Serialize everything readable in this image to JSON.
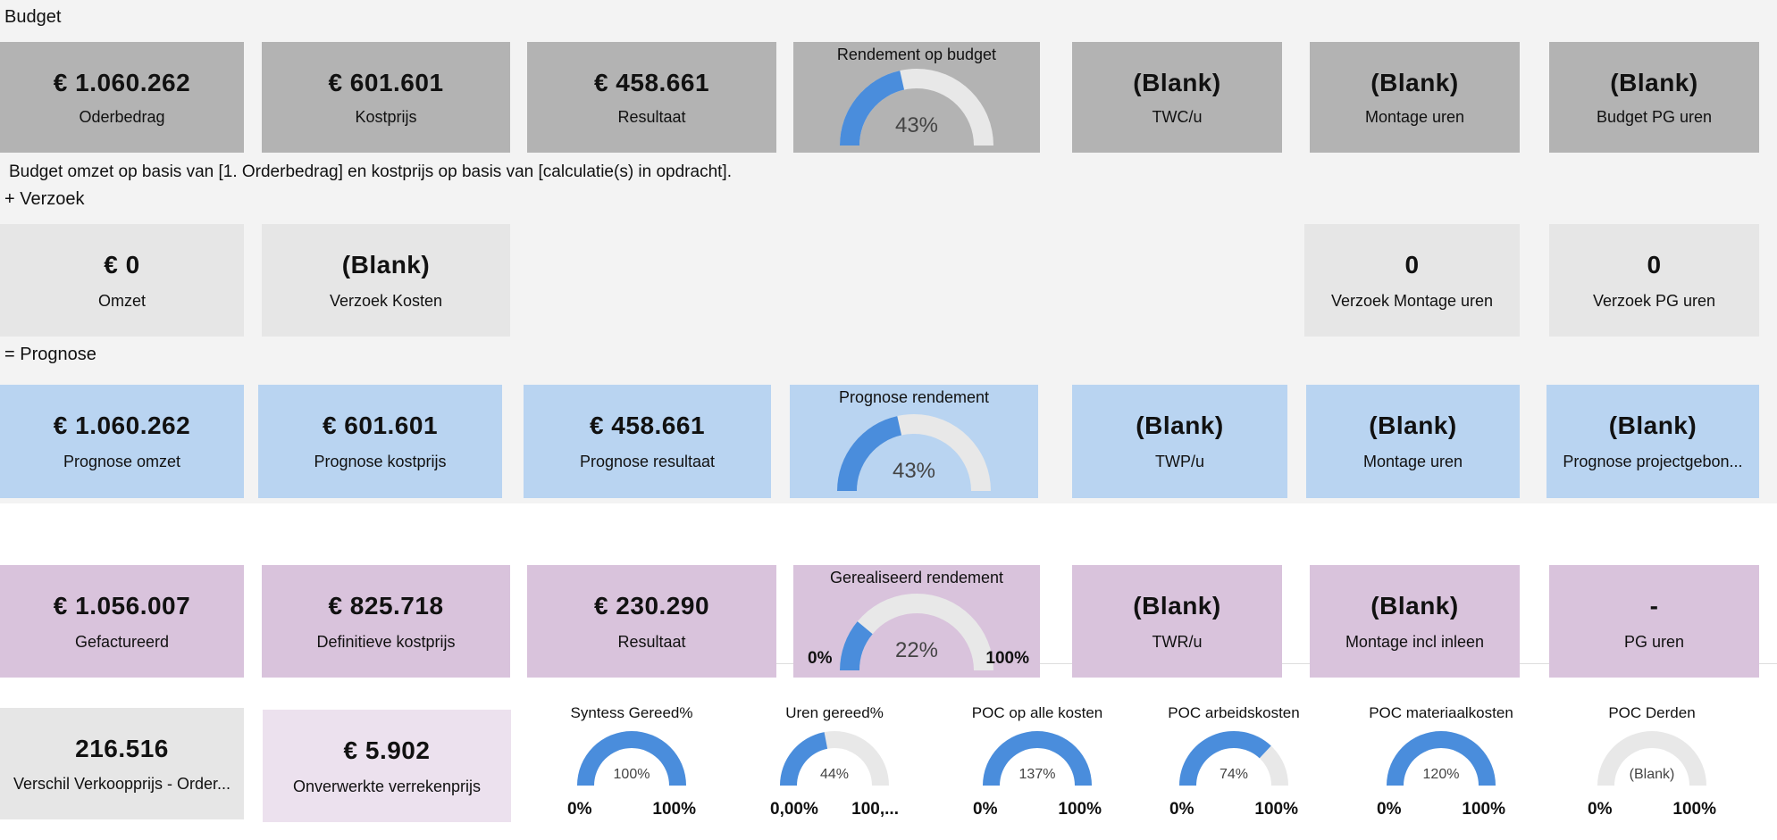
{
  "colors": {
    "gauge_fill": "#4a8ddc",
    "gauge_track": "#e8e8e8",
    "budget_card": "#b3b3b3",
    "verzoek_card": "#e6e6e6",
    "prognose_card": "#b9d4f1",
    "gerealiseerd_card": "#d9c3dc",
    "bottom_gray": "#e6e6e6",
    "bottom_lilac": "#ece1ee"
  },
  "sections": {
    "budget": "Budget",
    "note": "Budget omzet op basis van [1. Orderbedrag] en kostprijs op basis van [calculatie(s) in opdracht].",
    "verzoek": "+ Verzoek",
    "prognose": "= Prognose"
  },
  "budget": [
    {
      "value": "€ 1.060.262",
      "label": "Oderbedrag"
    },
    {
      "value": "€ 601.601",
      "label": "Kostprijs"
    },
    {
      "value": "€ 458.661",
      "label": "Resultaat"
    },
    {
      "gauge": true,
      "title": "Rendement op budget",
      "value_text": "43%",
      "percent": 43
    },
    {
      "value": "(Blank)",
      "label": "TWC/u"
    },
    {
      "value": "(Blank)",
      "label": "Montage uren"
    },
    {
      "value": "(Blank)",
      "label": "Budget PG uren"
    }
  ],
  "verzoek": [
    {
      "value": "€ 0",
      "label": "Omzet"
    },
    {
      "value": "(Blank)",
      "label": "Verzoek Kosten"
    },
    {
      "value": "0",
      "label": "Verzoek Montage uren"
    },
    {
      "value": "0",
      "label": "Verzoek PG uren"
    }
  ],
  "prognose": [
    {
      "value": "€ 1.060.262",
      "label": "Prognose omzet"
    },
    {
      "value": "€ 601.601",
      "label": "Prognose kostprijs"
    },
    {
      "value": "€ 458.661",
      "label": "Prognose resultaat"
    },
    {
      "gauge": true,
      "title": "Prognose rendement",
      "value_text": "43%",
      "percent": 43
    },
    {
      "value": "(Blank)",
      "label": "TWP/u"
    },
    {
      "value": "(Blank)",
      "label": "Montage uren"
    },
    {
      "value": "(Blank)",
      "label": "Prognose projectgebon..."
    }
  ],
  "gerealiseerd": [
    {
      "value": "€ 1.056.007",
      "label": "Gefactureerd"
    },
    {
      "value": "€ 825.718",
      "label": "Definitieve kostprijs"
    },
    {
      "value": "€ 230.290",
      "label": "Resultaat"
    },
    {
      "gauge": true,
      "title": "Gerealiseerd rendement",
      "value_text": "22%",
      "percent": 22,
      "min": "0%",
      "max": "100%"
    },
    {
      "value": "(Blank)",
      "label": "TWR/u"
    },
    {
      "value": "(Blank)",
      "label": "Montage incl inleen"
    },
    {
      "value": "-",
      "label": "PG uren"
    }
  ],
  "bottom": [
    {
      "value": "216.516",
      "label": "Verschil Verkoopprijs - Order..."
    },
    {
      "value": "€ 5.902",
      "label": "Onverwerkte verrekenprijs"
    }
  ],
  "small_gauges": [
    {
      "title": "Syntess Gereed%",
      "value_text": "100%",
      "percent": 100,
      "min": "0%",
      "max": "100%"
    },
    {
      "title": "Uren gereed%",
      "value_text": "44%",
      "percent": 44,
      "min": "0,00%",
      "max": "100,..."
    },
    {
      "title": "POC op alle kosten",
      "value_text": "137%",
      "percent": 137,
      "min": "0%",
      "max": "100%"
    },
    {
      "title": "POC arbeidskosten",
      "value_text": "74%",
      "percent": 74,
      "min": "0%",
      "max": "100%"
    },
    {
      "title": "POC materiaalkosten",
      "value_text": "120%",
      "percent": 120,
      "min": "0%",
      "max": "100%"
    },
    {
      "title": "POC Derden",
      "value_text": "(Blank)",
      "percent": 0,
      "min": "0%",
      "max": "100%"
    }
  ]
}
